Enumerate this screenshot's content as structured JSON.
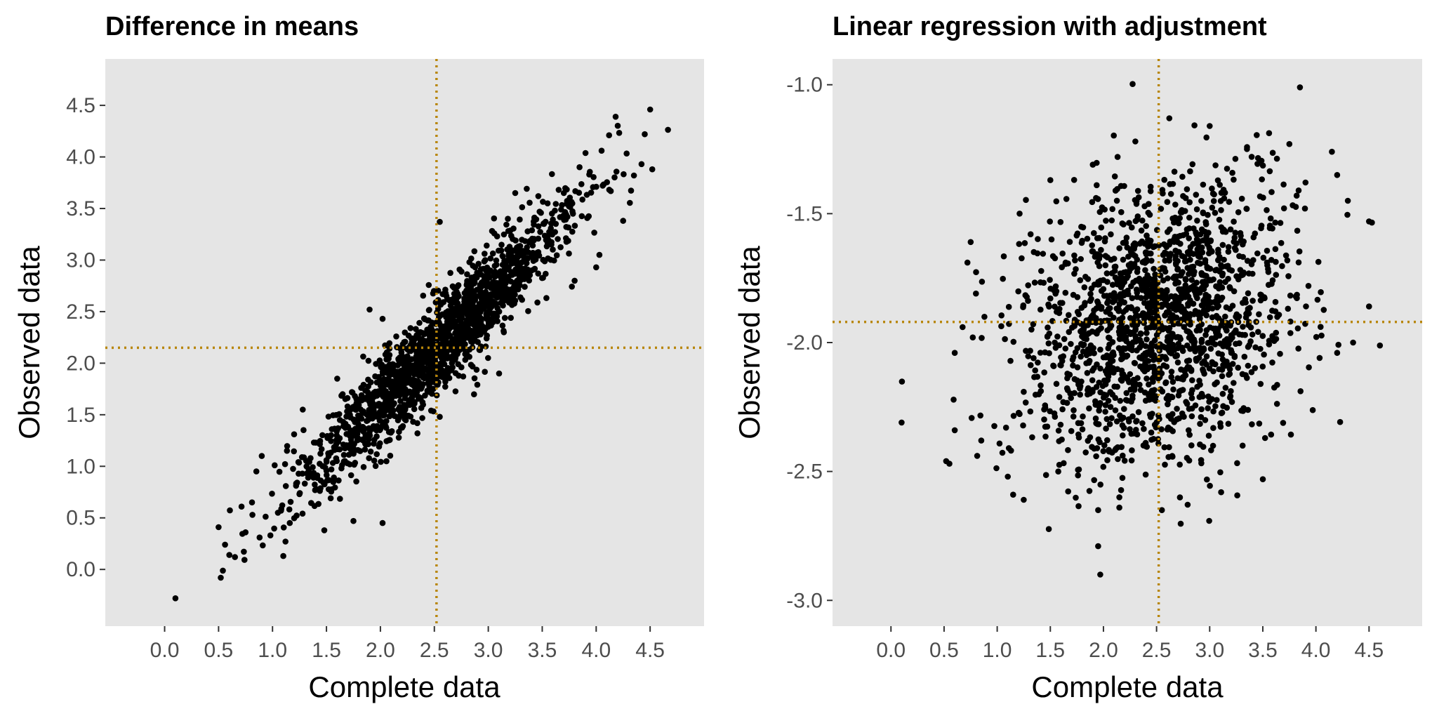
{
  "colors": {
    "panel_background": "#e5e5e5",
    "point": "#000000",
    "mean_line": "#b8860b",
    "tick_text": "#4d4d4d",
    "tick_mark": "#333333"
  },
  "chart_data": [
    {
      "type": "scatter",
      "title": "Difference in means",
      "xlabel": "Complete data",
      "ylabel": "Observed data",
      "xlim": [
        -0.55,
        5.0
      ],
      "ylim": [
        -0.55,
        4.95
      ],
      "xticks": [
        0.0,
        0.5,
        1.0,
        1.5,
        2.0,
        2.5,
        3.0,
        3.5,
        4.0,
        4.5
      ],
      "xtick_labels": [
        "0.0",
        "0.5",
        "1.0",
        "1.5",
        "2.0",
        "2.5",
        "3.0",
        "3.5",
        "4.0",
        "4.5"
      ],
      "yticks": [
        0.0,
        0.5,
        1.0,
        1.5,
        2.0,
        2.5,
        3.0,
        3.5,
        4.0,
        4.5
      ],
      "ytick_labels": [
        "0.0",
        "0.5",
        "1.0",
        "1.5",
        "2.0",
        "2.5",
        "3.0",
        "3.5",
        "4.0",
        "4.5"
      ],
      "grid": false,
      "reference_lines": {
        "vertical_x": 2.52,
        "horizontal_y": 2.15,
        "style": "dotted"
      },
      "points": [
        [
          0.1,
          -0.28
        ],
        [
          0.52,
          -0.08
        ],
        [
          0.5,
          0.41
        ],
        [
          0.56,
          0.24
        ],
        [
          0.6,
          0.14
        ],
        [
          0.75,
          0.36
        ],
        [
          0.81,
          0.65
        ],
        [
          0.88,
          0.31
        ],
        [
          0.85,
          0.95
        ],
        [
          0.9,
          1.1
        ],
        [
          0.98,
          0.33
        ],
        [
          1.02,
          1.01
        ],
        [
          1.05,
          0.55
        ],
        [
          1.1,
          0.13
        ],
        [
          1.12,
          0.27
        ],
        [
          1.16,
          0.45
        ],
        [
          1.2,
          1.31
        ],
        [
          1.25,
          0.73
        ],
        [
          1.28,
          1.55
        ],
        [
          1.38,
          0.89
        ],
        [
          1.48,
          0.38
        ],
        [
          1.5,
          1.06
        ],
        [
          1.55,
          1.36
        ],
        [
          1.6,
          1.85
        ],
        [
          1.65,
          1.7
        ],
        [
          1.75,
          0.47
        ],
        [
          1.9,
          2.52
        ],
        [
          2.02,
          0.45
        ],
        [
          2.02,
          2.43
        ],
        [
          2.55,
          3.37
        ],
        [
          3.1,
          1.9
        ],
        [
          2.55,
          1.48
        ],
        [
          3.25,
          3.65
        ],
        [
          3.55,
          3.55
        ],
        [
          3.7,
          3.65
        ],
        [
          3.8,
          2.8
        ],
        [
          4.0,
          2.93
        ],
        [
          4.03,
          3.05
        ],
        [
          4.05,
          4.06
        ],
        [
          4.12,
          4.21
        ],
        [
          4.18,
          4.39
        ],
        [
          4.25,
          3.38
        ],
        [
          4.35,
          3.82
        ],
        [
          4.42,
          3.93
        ],
        [
          4.45,
          4.22
        ],
        [
          4.5,
          4.46
        ],
        [
          4.52,
          3.88
        ]
      ],
      "generated_cloud": {
        "n": 1700,
        "x_mean": 2.52,
        "x_sd": 0.62,
        "y_mean": 2.15,
        "y_sd": 0.68,
        "correlation": 0.94
      }
    },
    {
      "type": "scatter",
      "title": "Linear regression with adjustment",
      "xlabel": "Complete data",
      "ylabel": "Observed data",
      "xlim": [
        -0.55,
        5.0
      ],
      "ylim": [
        -3.1,
        -0.9
      ],
      "xticks": [
        0.0,
        0.5,
        1.0,
        1.5,
        2.0,
        2.5,
        3.0,
        3.5,
        4.0,
        4.5
      ],
      "xtick_labels": [
        "0.0",
        "0.5",
        "1.0",
        "1.5",
        "2.0",
        "2.5",
        "3.0",
        "3.5",
        "4.0",
        "4.5"
      ],
      "yticks": [
        -3.0,
        -2.5,
        -2.0,
        -1.5,
        -1.0
      ],
      "ytick_labels": [
        "-3.0",
        "-2.5",
        "-2.0",
        "-1.5",
        "-1.0"
      ],
      "grid": false,
      "reference_lines": {
        "vertical_x": 2.52,
        "horizontal_y": -1.92,
        "style": "dotted"
      },
      "points": [
        [
          0.1,
          -2.31
        ],
        [
          0.52,
          -2.46
        ],
        [
          0.55,
          -2.47
        ],
        [
          0.6,
          -2.34
        ],
        [
          0.6,
          -2.04
        ],
        [
          0.72,
          -1.69
        ],
        [
          0.75,
          -1.61
        ],
        [
          0.8,
          -1.81
        ],
        [
          0.85,
          -2.38
        ],
        [
          0.88,
          -1.9
        ],
        [
          1.1,
          -2.52
        ],
        [
          1.15,
          -2.59
        ],
        [
          1.25,
          -2.61
        ],
        [
          1.95,
          -2.65
        ],
        [
          1.95,
          -2.79
        ],
        [
          1.97,
          -2.9
        ],
        [
          2.15,
          -2.6
        ],
        [
          2.15,
          -2.64
        ],
        [
          2.55,
          -2.65
        ],
        [
          3.5,
          -2.53
        ],
        [
          3.85,
          -1.01
        ],
        [
          2.62,
          -1.13
        ],
        [
          3.0,
          -1.16
        ],
        [
          4.15,
          -1.26
        ],
        [
          4.2,
          -1.35
        ],
        [
          1.5,
          -1.37
        ],
        [
          1.9,
          -1.31
        ],
        [
          2.3,
          -1.22
        ],
        [
          3.75,
          -1.23
        ],
        [
          4.3,
          -1.45
        ],
        [
          4.5,
          -1.53
        ],
        [
          4.5,
          -1.86
        ],
        [
          4.35,
          -2.0
        ],
        [
          4.2,
          -2.04
        ]
      ],
      "generated_cloud": {
        "n": 1700,
        "x_mean": 2.52,
        "x_sd": 0.62,
        "y_mean": -1.92,
        "y_sd": 0.27,
        "correlation": 0.2
      }
    }
  ]
}
